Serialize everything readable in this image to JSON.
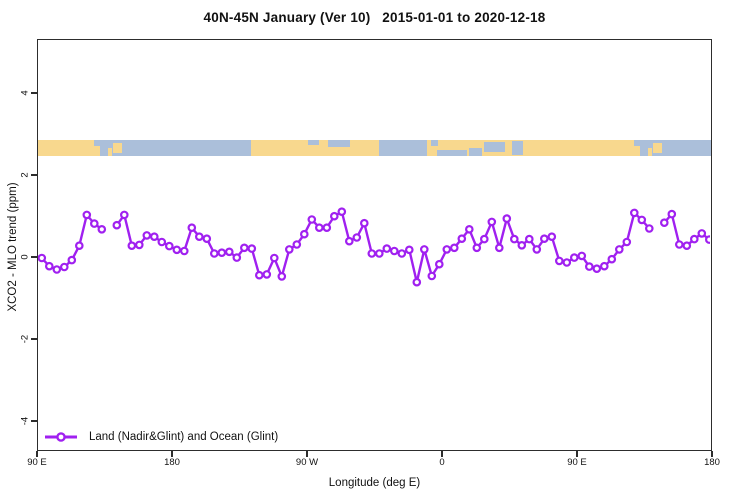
{
  "chart": {
    "title": "40N-45N January (Ver 10)   2015-01-01 to 2020-12-18"
  },
  "colors": {
    "series": "#a020f0",
    "land": "#f8d88e",
    "ocean": "#abbfda",
    "axis": "#2d2d2d",
    "background": "#ffffff"
  },
  "chart_data": {
    "type": "line",
    "title": "40N-45N January (Ver 10)   2015-01-01 to 2020-12-18",
    "xlabel": "Longitude (deg E)",
    "ylabel": "XCO2 - MLO trend (ppm)",
    "xlim": [
      90,
      540
    ],
    "ylim": [
      -4.8,
      5.3
    ],
    "grid": false,
    "x_ticks": [
      {
        "lon": 90,
        "label": "90 E"
      },
      {
        "lon": 180,
        "label": "180"
      },
      {
        "lon": 270,
        "label": "90 W"
      },
      {
        "lon": 360,
        "label": "0"
      },
      {
        "lon": 450,
        "label": "90 E"
      },
      {
        "lon": 540,
        "label": "180"
      }
    ],
    "y_ticks": [
      {
        "value": 4,
        "label": "4"
      },
      {
        "value": 2,
        "label": "2"
      },
      {
        "value": 0,
        "label": "0"
      },
      {
        "value": -2,
        "label": "-2"
      },
      {
        "value": -4,
        "label": "-4"
      }
    ],
    "legend": {
      "position": "bottom-left",
      "entries": [
        {
          "label": "Land (Nadir&Glint) and Ocean (Glint)",
          "color": "#a020f0",
          "marker": "open-circle"
        }
      ]
    },
    "series": [
      {
        "name": "Land (Nadir&Glint) and Ocean (Glint)",
        "marker": "open-circle",
        "x_start": 92.5,
        "x_step": 5,
        "values": [
          0.0,
          -0.2,
          -0.28,
          -0.22,
          -0.05,
          0.3,
          1.05,
          0.84,
          0.7,
          null,
          0.8,
          1.05,
          0.3,
          0.32,
          0.55,
          0.52,
          0.39,
          0.29,
          0.2,
          0.17,
          0.74,
          0.52,
          0.47,
          0.11,
          0.13,
          0.15,
          0.01,
          0.25,
          0.23,
          -0.42,
          -0.4,
          0.0,
          -0.45,
          0.21,
          0.33,
          0.58,
          0.94,
          0.74,
          0.74,
          1.02,
          1.13,
          0.41,
          0.5,
          0.85,
          0.11,
          0.11,
          0.23,
          0.17,
          0.11,
          0.2,
          -0.59,
          0.21,
          -0.44,
          -0.15,
          0.21,
          0.25,
          0.47,
          0.7,
          0.25,
          0.46,
          0.88,
          0.25,
          0.96,
          0.46,
          0.31,
          0.46,
          0.21,
          0.47,
          0.52,
          -0.07,
          -0.11,
          0.01,
          0.05,
          -0.21,
          -0.26,
          -0.2,
          -0.03,
          0.21,
          0.39,
          1.1,
          0.93,
          0.72,
          null,
          0.86,
          1.07,
          0.33,
          0.3,
          0.46,
          0.6,
          0.45
        ]
      }
    ],
    "map_band": {
      "description": "land/ocean strip for 40N-45N latitude band",
      "value_center_ppm": 2.7,
      "land_segments_lon": [
        [
          90,
          131
        ],
        [
          232,
          317
        ],
        [
          349,
          491
        ]
      ],
      "island_specks_lon": [
        {
          "a": 136.5,
          "b": 139.5,
          "top": 0.5,
          "h": 0.5
        },
        {
          "a": 140,
          "b": 146,
          "top": 0.2,
          "h": 0.6
        },
        {
          "a": 496.5,
          "b": 499.5,
          "top": 0.5,
          "h": 0.5
        },
        {
          "a": 500,
          "b": 506,
          "top": 0.2,
          "h": 0.6
        }
      ],
      "inland_water_lon": [
        {
          "a": 127.5,
          "b": 131,
          "top": 0,
          "h": 0.35
        },
        {
          "a": 270,
          "b": 277,
          "top": 0,
          "h": 0.3
        },
        {
          "a": 283,
          "b": 298,
          "top": 0,
          "h": 0.42
        },
        {
          "a": 352,
          "b": 356.5,
          "top": 0,
          "h": 0.4
        },
        {
          "a": 356,
          "b": 376,
          "top": 0.6,
          "h": 0.4
        },
        {
          "a": 377,
          "b": 386,
          "top": 0.5,
          "h": 0.5
        },
        {
          "a": 387,
          "b": 401,
          "top": 0.12,
          "h": 0.6
        },
        {
          "a": 406,
          "b": 413,
          "top": 0.08,
          "h": 0.84
        },
        {
          "a": 487.5,
          "b": 491,
          "top": 0,
          "h": 0.35
        }
      ]
    }
  }
}
